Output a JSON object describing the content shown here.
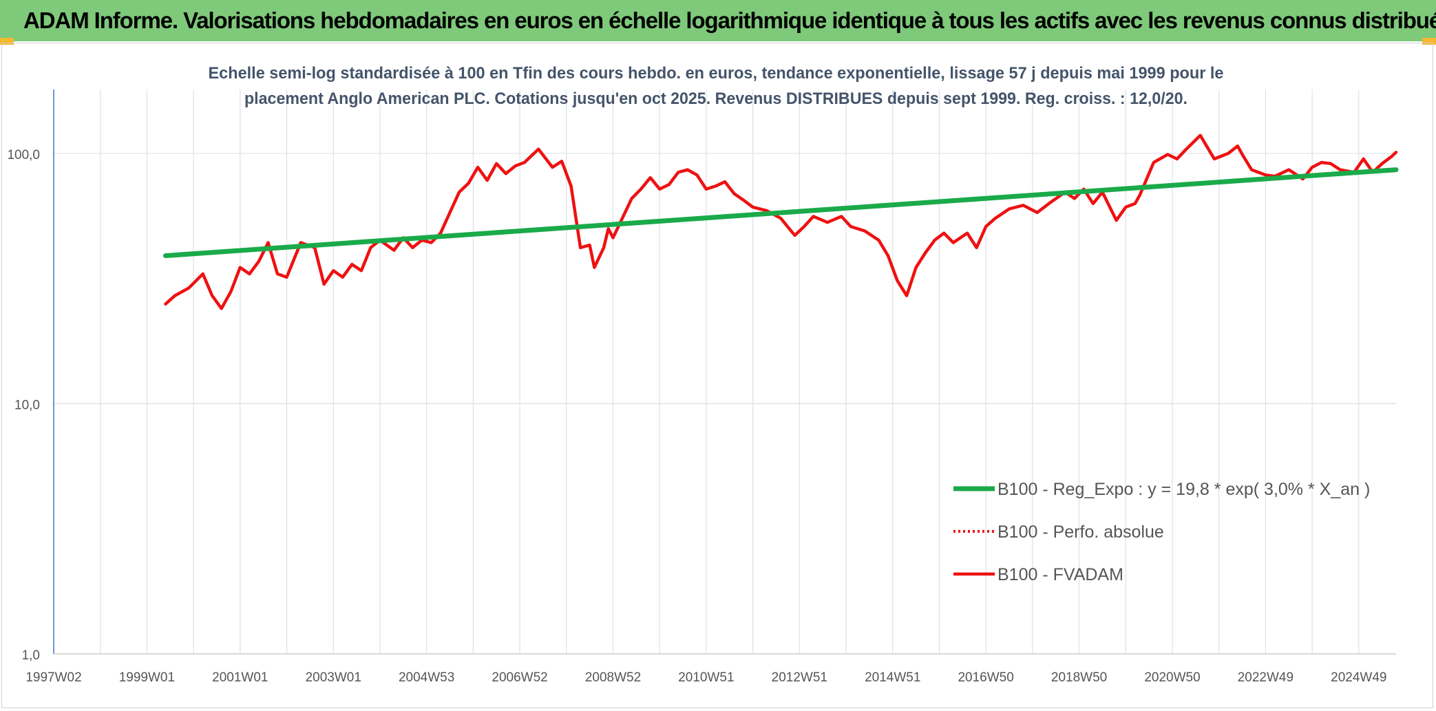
{
  "banner": {
    "title": "ADAM Informe. Valorisations hebdomadaires en euros en échelle logarithmique identique à tous les actifs avec les revenus connus distribués"
  },
  "colors": {
    "banner_bg": "#7ec97a",
    "corner_accent": "#f5b82e",
    "trend": "#1aaa4a",
    "fvadam": "#ee1111",
    "perfo": "#ee1111",
    "grid": "#dde1e6",
    "axis_text": "#555555",
    "title_text": "#44546a"
  },
  "chart_data": {
    "type": "line",
    "title_lines": [
      "Echelle semi-log standardisée à 100 en Tfin des cours hebdo. en euros, tendance exponentielle, lissage 57 j depuis mai 1999 pour le",
      "placement Anglo American PLC. Cotations jusqu'en oct 2025. Revenus DISTRIBUES depuis sept 1999. Reg. croiss. : 12,0/20."
    ],
    "y_scale": "log",
    "ylim": [
      1,
      180
    ],
    "xlim": [
      1997.0,
      2025.8
    ],
    "x_tick_values": [
      1997.0,
      1999.0,
      2001.0,
      2003.0,
      2005.0,
      2007.0,
      2009.0,
      2011.0,
      2013.0,
      2015.0,
      2017.0,
      2019.0,
      2021.0,
      2023.0,
      2025.0
    ],
    "x_tick_labels": [
      "1997W02",
      "1999W01",
      "2001W01",
      "2003W01",
      "2004W53",
      "2006W52",
      "2008W52",
      "2010W51",
      "2012W51",
      "2014W51",
      "2016W50",
      "2018W50",
      "2020W50",
      "2022W49",
      "2024W49"
    ],
    "y_ticks": [
      1,
      10,
      100
    ],
    "y_tick_labels": [
      "1,0",
      "10,0",
      "100,0"
    ],
    "grid": true,
    "legend_position": "right",
    "series": [
      {
        "name": "B100 - Reg_Expo : y = 19,8 * exp( 3,0% *  X_an )",
        "style": "solid-thick",
        "x": [
          1999.4,
          2025.8
        ],
        "y": [
          39,
          86
        ]
      },
      {
        "name": "B100 - Perfo. absolue",
        "style": "dotted",
        "x": [],
        "y": []
      },
      {
        "name": "B100 - FVADAM",
        "style": "solid",
        "x": [
          1999.4,
          1999.6,
          1999.9,
          2000.2,
          2000.4,
          2000.6,
          2000.8,
          2001.0,
          2001.2,
          2001.4,
          2001.6,
          2001.8,
          2002.0,
          2002.3,
          2002.6,
          2002.8,
          2003.0,
          2003.2,
          2003.4,
          2003.6,
          2003.8,
          2004.0,
          2004.3,
          2004.5,
          2004.7,
          2004.9,
          2005.1,
          2005.3,
          2005.5,
          2005.7,
          2005.9,
          2006.1,
          2006.3,
          2006.5,
          2006.7,
          2006.9,
          2007.1,
          2007.4,
          2007.7,
          2007.9,
          2008.1,
          2008.3,
          2008.5,
          2008.6,
          2008.8,
          2008.9,
          2009.0,
          2009.2,
          2009.4,
          2009.6,
          2009.8,
          2010.0,
          2010.2,
          2010.4,
          2010.6,
          2010.8,
          2011.0,
          2011.2,
          2011.4,
          2011.6,
          2011.8,
          2012.0,
          2012.3,
          2012.6,
          2012.9,
          2013.1,
          2013.3,
          2013.6,
          2013.9,
          2014.1,
          2014.4,
          2014.7,
          2014.9,
          2015.1,
          2015.3,
          2015.5,
          2015.7,
          2015.9,
          2016.1,
          2016.3,
          2016.6,
          2016.8,
          2017.0,
          2017.2,
          2017.5,
          2017.8,
          2018.1,
          2018.4,
          2018.7,
          2018.9,
          2019.1,
          2019.3,
          2019.5,
          2019.8,
          2020.0,
          2020.2,
          2020.3,
          2020.6,
          2020.9,
          2021.1,
          2021.3,
          2021.6,
          2021.9,
          2022.2,
          2022.4,
          2022.5,
          2022.7,
          2023.0,
          2023.2,
          2023.5,
          2023.8,
          2024.0,
          2024.2,
          2024.4,
          2024.6,
          2024.9,
          2025.1,
          2025.3,
          2025.5,
          2025.7,
          2025.8
        ],
        "y": [
          25,
          27,
          29,
          33,
          27,
          24,
          28,
          35,
          33,
          37,
          44,
          33,
          32,
          44,
          42,
          30,
          34,
          32,
          36,
          34,
          42,
          45,
          41,
          46,
          42,
          45,
          44,
          48,
          58,
          70,
          76,
          88,
          78,
          91,
          83,
          89,
          92,
          104,
          88,
          93,
          74,
          42,
          43,
          35,
          42,
          50,
          46,
          55,
          66,
          72,
          80,
          72,
          75,
          84,
          86,
          82,
          72,
          74,
          77,
          69,
          65,
          61,
          59,
          55,
          47,
          51,
          56,
          53,
          56,
          51,
          49,
          45,
          39,
          31,
          27,
          35,
          40,
          45,
          48,
          44,
          48,
          42,
          51,
          55,
          60,
          62,
          58,
          64,
          70,
          66,
          72,
          63,
          70,
          54,
          61,
          63,
          68,
          92,
          99,
          95,
          104,
          118,
          95,
          100,
          107,
          99,
          86,
          82,
          81,
          86,
          79,
          88,
          92,
          91,
          86,
          84,
          95,
          84,
          91,
          97,
          101
        ]
      }
    ]
  }
}
